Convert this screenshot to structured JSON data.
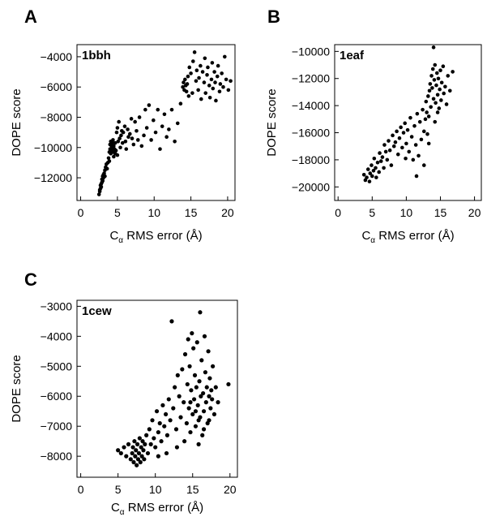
{
  "chart_data": [
    {
      "panel": "A",
      "type": "scatter",
      "title": "1bbh",
      "xlabel_main": "C",
      "xlabel_sub": "α",
      "xlabel_rest": " RMS error (Å)",
      "ylabel": "DOPE score",
      "xlim": [
        -0.5,
        21
      ],
      "ylim": [
        -13500,
        -3200
      ],
      "xticks": [
        0,
        5,
        10,
        15,
        20
      ],
      "yticks": [
        -4000,
        -6000,
        -8000,
        -10000,
        -12000
      ],
      "points": [
        [
          2.5,
          -13100
        ],
        [
          2.6,
          -12900
        ],
        [
          2.6,
          -12800
        ],
        [
          2.7,
          -12700
        ],
        [
          2.7,
          -12500
        ],
        [
          2.8,
          -12600
        ],
        [
          2.8,
          -12400
        ],
        [
          2.9,
          -12300
        ],
        [
          2.9,
          -12100
        ],
        [
          3.0,
          -12200
        ],
        [
          3.0,
          -11900
        ],
        [
          3.1,
          -12000
        ],
        [
          3.1,
          -11800
        ],
        [
          3.2,
          -11700
        ],
        [
          3.3,
          -11500
        ],
        [
          3.3,
          -11900
        ],
        [
          3.4,
          -11300
        ],
        [
          3.5,
          -11100
        ],
        [
          3.6,
          -11400
        ],
        [
          3.7,
          -11000
        ],
        [
          3.8,
          -10700
        ],
        [
          3.9,
          -10900
        ],
        [
          3.9,
          -10300
        ],
        [
          4.0,
          -10100
        ],
        [
          4.0,
          -9800
        ],
        [
          4.1,
          -10400
        ],
        [
          4.1,
          -9600
        ],
        [
          4.2,
          -9900
        ],
        [
          4.2,
          -10200
        ],
        [
          4.3,
          -9700
        ],
        [
          4.3,
          -10000
        ],
        [
          4.4,
          -10300
        ],
        [
          4.4,
          -9500
        ],
        [
          4.5,
          -10600
        ],
        [
          4.5,
          -9900
        ],
        [
          4.6,
          -10100
        ],
        [
          4.7,
          -10400
        ],
        [
          4.7,
          -9700
        ],
        [
          4.8,
          -10200
        ],
        [
          4.9,
          -9000
        ],
        [
          5.0,
          -10500
        ],
        [
          5.0,
          -8700
        ],
        [
          5.1,
          -9600
        ],
        [
          5.2,
          -8300
        ],
        [
          5.3,
          -9400
        ],
        [
          5.4,
          -10000
        ],
        [
          5.5,
          -9200
        ],
        [
          5.6,
          -8900
        ],
        [
          5.7,
          -9700
        ],
        [
          5.8,
          -9000
        ],
        [
          6.0,
          -8600
        ],
        [
          6.1,
          -9600
        ],
        [
          6.2,
          -10100
        ],
        [
          6.4,
          -8800
        ],
        [
          6.5,
          -9300
        ],
        [
          6.7,
          -9100
        ],
        [
          6.9,
          -8100
        ],
        [
          7.0,
          -9400
        ],
        [
          7.2,
          -9800
        ],
        [
          7.4,
          -8300
        ],
        [
          7.6,
          -8900
        ],
        [
          7.8,
          -9500
        ],
        [
          8.0,
          -8000
        ],
        [
          8.3,
          -9900
        ],
        [
          8.6,
          -9200
        ],
        [
          8.8,
          -7500
        ],
        [
          9.0,
          -8700
        ],
        [
          9.3,
          -7200
        ],
        [
          9.6,
          -9500
        ],
        [
          9.9,
          -8200
        ],
        [
          10.2,
          -9000
        ],
        [
          10.5,
          -7500
        ],
        [
          10.8,
          -10100
        ],
        [
          11.1,
          -8600
        ],
        [
          11.4,
          -7800
        ],
        [
          11.7,
          -9300
        ],
        [
          12.0,
          -8800
        ],
        [
          12.4,
          -7500
        ],
        [
          12.8,
          -9600
        ],
        [
          13.2,
          -8400
        ],
        [
          13.6,
          -7100
        ],
        [
          13.9,
          -6000
        ],
        [
          14.0,
          -5700
        ],
        [
          14.1,
          -6200
        ],
        [
          14.2,
          -5500
        ],
        [
          14.3,
          -5900
        ],
        [
          14.4,
          -6300
        ],
        [
          14.5,
          -5800
        ],
        [
          14.6,
          -5300
        ],
        [
          14.7,
          -6600
        ],
        [
          14.8,
          -4700
        ],
        [
          15.0,
          -5100
        ],
        [
          15.2,
          -6400
        ],
        [
          15.3,
          -4300
        ],
        [
          15.5,
          -3700
        ],
        [
          15.7,
          -5600
        ],
        [
          15.8,
          -4900
        ],
        [
          16.0,
          -6200
        ],
        [
          16.1,
          -5400
        ],
        [
          16.3,
          -4600
        ],
        [
          16.4,
          -6800
        ],
        [
          16.6,
          -5000
        ],
        [
          16.8,
          -5700
        ],
        [
          16.9,
          -4100
        ],
        [
          17.0,
          -6400
        ],
        [
          17.2,
          -5200
        ],
        [
          17.3,
          -4700
        ],
        [
          17.5,
          -5900
        ],
        [
          17.6,
          -6700
        ],
        [
          17.8,
          -5500
        ],
        [
          17.9,
          -4400
        ],
        [
          18.0,
          -6100
        ],
        [
          18.2,
          -5000
        ],
        [
          18.3,
          -5700
        ],
        [
          18.4,
          -6900
        ],
        [
          18.6,
          -5300
        ],
        [
          18.7,
          -4600
        ],
        [
          18.9,
          -6300
        ],
        [
          19.0,
          -5800
        ],
        [
          19.2,
          -5100
        ],
        [
          19.4,
          -6000
        ],
        [
          19.6,
          -4000
        ],
        [
          19.8,
          -5500
        ],
        [
          20.1,
          -6200
        ],
        [
          20.4,
          -5600
        ]
      ]
    },
    {
      "panel": "B",
      "type": "scatter",
      "title": "1eaf",
      "xlabel_main": "C",
      "xlabel_sub": "α",
      "xlabel_rest": " RMS error (Å)",
      "ylabel": "DOPE score",
      "xlim": [
        -0.5,
        21
      ],
      "ylim": [
        -21000,
        -9500
      ],
      "xticks": [
        0,
        5,
        10,
        15,
        20
      ],
      "yticks": [
        -10000,
        -12000,
        -14000,
        -16000,
        -18000,
        -20000
      ],
      "points": [
        [
          3.8,
          -19100
        ],
        [
          4.0,
          -19500
        ],
        [
          4.2,
          -19300
        ],
        [
          4.4,
          -18700
        ],
        [
          4.6,
          -19600
        ],
        [
          4.7,
          -19000
        ],
        [
          4.9,
          -18400
        ],
        [
          5.0,
          -19200
        ],
        [
          5.2,
          -18800
        ],
        [
          5.3,
          -17900
        ],
        [
          5.5,
          -18600
        ],
        [
          5.6,
          -19300
        ],
        [
          5.8,
          -18200
        ],
        [
          6.0,
          -18900
        ],
        [
          6.1,
          -17500
        ],
        [
          6.3,
          -18100
        ],
        [
          6.5,
          -17800
        ],
        [
          6.7,
          -18600
        ],
        [
          6.8,
          -16900
        ],
        [
          7.0,
          -17400
        ],
        [
          7.2,
          -18000
        ],
        [
          7.4,
          -16600
        ],
        [
          7.6,
          -17300
        ],
        [
          7.8,
          -18400
        ],
        [
          8.0,
          -16200
        ],
        [
          8.2,
          -17000
        ],
        [
          8.4,
          -16700
        ],
        [
          8.6,
          -15900
        ],
        [
          8.8,
          -17600
        ],
        [
          9.0,
          -16400
        ],
        [
          9.2,
          -15600
        ],
        [
          9.4,
          -17100
        ],
        [
          9.6,
          -16000
        ],
        [
          9.8,
          -15300
        ],
        [
          10.0,
          -16800
        ],
        [
          10.2,
          -15800
        ],
        [
          10.4,
          -17400
        ],
        [
          10.6,
          -14900
        ],
        [
          10.8,
          -16300
        ],
        [
          11.0,
          -18000
        ],
        [
          11.2,
          -15500
        ],
        [
          11.4,
          -16900
        ],
        [
          11.6,
          -14600
        ],
        [
          11.8,
          -17700
        ],
        [
          12.0,
          -15200
        ],
        [
          12.2,
          -16500
        ],
        [
          12.4,
          -14300
        ],
        [
          12.6,
          -15900
        ],
        [
          12.8,
          -15000
        ],
        [
          12.9,
          -13700
        ],
        [
          13.0,
          -14500
        ],
        [
          13.1,
          -16100
        ],
        [
          13.2,
          -13300
        ],
        [
          13.3,
          -14800
        ],
        [
          13.4,
          -12900
        ],
        [
          13.5,
          -12400
        ],
        [
          13.6,
          -14100
        ],
        [
          13.7,
          -11800
        ],
        [
          13.8,
          -12700
        ],
        [
          13.9,
          -11300
        ],
        [
          14.0,
          -13500
        ],
        [
          14.1,
          -12100
        ],
        [
          14.2,
          -11000
        ],
        [
          14.3,
          -13800
        ],
        [
          14.4,
          -12500
        ],
        [
          14.5,
          -11600
        ],
        [
          14.6,
          -13200
        ],
        [
          14.7,
          -12000
        ],
        [
          14.8,
          -14200
        ],
        [
          14.9,
          -12800
        ],
        [
          15.0,
          -11400
        ],
        [
          15.1,
          -13600
        ],
        [
          15.2,
          -12300
        ],
        [
          15.4,
          -11100
        ],
        [
          15.5,
          -13100
        ],
        [
          15.7,
          -12600
        ],
        [
          15.9,
          -13900
        ],
        [
          16.1,
          -11800
        ],
        [
          16.4,
          -12900
        ],
        [
          16.8,
          -11500
        ],
        [
          14.0,
          -9700
        ],
        [
          11.5,
          -19200
        ],
        [
          12.6,
          -18400
        ],
        [
          9.9,
          -17900
        ],
        [
          13.3,
          -16800
        ],
        [
          14.2,
          -15200
        ],
        [
          14.6,
          -14500
        ]
      ]
    },
    {
      "panel": "C",
      "type": "scatter",
      "title": "1cew",
      "xlabel_main": "C",
      "xlabel_sub": "α",
      "xlabel_rest": " RMS error (Å)",
      "ylabel": "DOPE score",
      "xlim": [
        -0.5,
        21
      ],
      "ylim": [
        -8700,
        -2800
      ],
      "xticks": [
        0,
        5,
        10,
        15,
        20
      ],
      "yticks": [
        -3000,
        -4000,
        -5000,
        -6000,
        -7000,
        -8000
      ],
      "points": [
        [
          5.0,
          -7800
        ],
        [
          5.4,
          -7900
        ],
        [
          5.8,
          -7700
        ],
        [
          6.1,
          -8000
        ],
        [
          6.4,
          -7600
        ],
        [
          6.7,
          -8100
        ],
        [
          6.9,
          -7900
        ],
        [
          7.0,
          -7700
        ],
        [
          7.1,
          -8200
        ],
        [
          7.2,
          -7500
        ],
        [
          7.3,
          -8000
        ],
        [
          7.4,
          -7800
        ],
        [
          7.5,
          -8300
        ],
        [
          7.6,
          -7600
        ],
        [
          7.7,
          -8100
        ],
        [
          7.8,
          -7900
        ],
        [
          7.9,
          -7400
        ],
        [
          8.0,
          -8200
        ],
        [
          8.1,
          -7700
        ],
        [
          8.2,
          -8000
        ],
        [
          8.3,
          -7500
        ],
        [
          8.4,
          -7800
        ],
        [
          8.5,
          -8100
        ],
        [
          8.6,
          -7600
        ],
        [
          8.8,
          -7300
        ],
        [
          9.0,
          -7900
        ],
        [
          9.2,
          -7100
        ],
        [
          9.4,
          -7600
        ],
        [
          9.6,
          -6800
        ],
        [
          9.8,
          -7400
        ],
        [
          10.0,
          -7700
        ],
        [
          10.2,
          -6500
        ],
        [
          10.4,
          -7200
        ],
        [
          10.6,
          -6900
        ],
        [
          10.8,
          -7500
        ],
        [
          11.0,
          -6300
        ],
        [
          11.2,
          -7000
        ],
        [
          11.4,
          -6600
        ],
        [
          11.6,
          -7300
        ],
        [
          11.8,
          -6100
        ],
        [
          12.0,
          -6800
        ],
        [
          12.2,
          -3500
        ],
        [
          12.4,
          -6400
        ],
        [
          12.6,
          -5700
        ],
        [
          12.8,
          -7100
        ],
        [
          13.0,
          -5300
        ],
        [
          13.2,
          -6000
        ],
        [
          13.4,
          -6700
        ],
        [
          13.6,
          -5100
        ],
        [
          13.8,
          -6200
        ],
        [
          14.0,
          -4600
        ],
        [
          14.2,
          -6900
        ],
        [
          14.3,
          -5600
        ],
        [
          14.4,
          -4100
        ],
        [
          14.5,
          -6400
        ],
        [
          14.6,
          -5000
        ],
        [
          14.7,
          -7200
        ],
        [
          14.8,
          -5800
        ],
        [
          14.9,
          -3900
        ],
        [
          15.0,
          -6600
        ],
        [
          15.1,
          -4400
        ],
        [
          15.2,
          -6100
        ],
        [
          15.3,
          -5300
        ],
        [
          15.4,
          -7000
        ],
        [
          15.5,
          -5700
        ],
        [
          15.6,
          -4200
        ],
        [
          15.7,
          -6300
        ],
        [
          15.8,
          -6800
        ],
        [
          15.9,
          -5500
        ],
        [
          16.0,
          -3200
        ],
        [
          16.1,
          -6000
        ],
        [
          16.2,
          -4800
        ],
        [
          16.3,
          -7300
        ],
        [
          16.4,
          -5900
        ],
        [
          16.5,
          -6500
        ],
        [
          16.6,
          -4000
        ],
        [
          16.7,
          -5200
        ],
        [
          16.8,
          -6200
        ],
        [
          16.9,
          -5700
        ],
        [
          17.0,
          -6900
        ],
        [
          17.1,
          -4500
        ],
        [
          17.2,
          -6000
        ],
        [
          17.3,
          -5400
        ],
        [
          17.4,
          -6400
        ],
        [
          17.5,
          -5800
        ],
        [
          17.6,
          -6100
        ],
        [
          17.7,
          -5000
        ],
        [
          17.9,
          -6600
        ],
        [
          18.1,
          -5700
        ],
        [
          18.4,
          -6200
        ],
        [
          19.8,
          -5600
        ],
        [
          15.4,
          -6500
        ],
        [
          16.0,
          -6700
        ],
        [
          14.7,
          -6200
        ],
        [
          15.8,
          -7600
        ],
        [
          16.5,
          -7100
        ],
        [
          17.2,
          -6800
        ],
        [
          13.9,
          -7500
        ],
        [
          12.9,
          -7700
        ],
        [
          11.5,
          -7900
        ],
        [
          10.4,
          -8000
        ]
      ]
    }
  ]
}
